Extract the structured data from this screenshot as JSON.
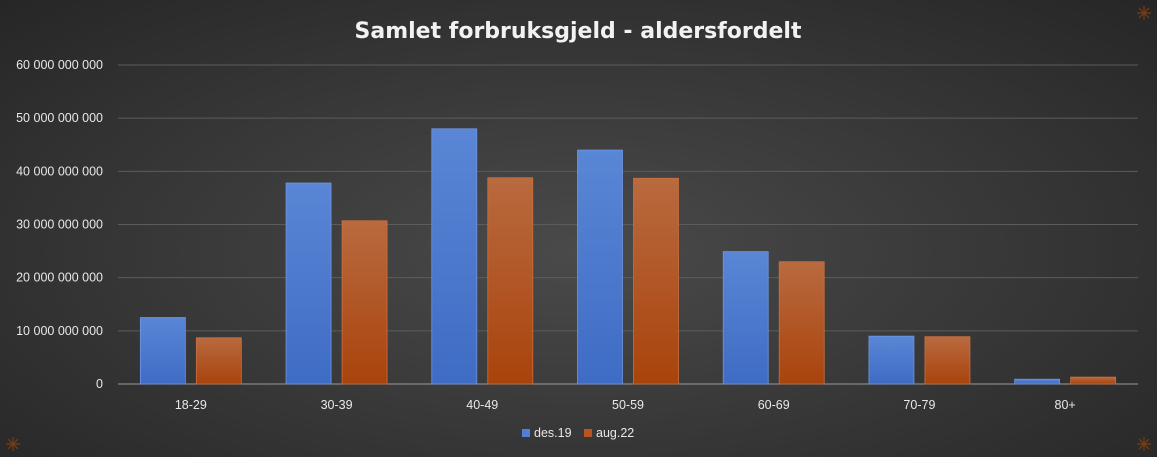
{
  "chart_data": {
    "type": "bar",
    "title": "Samlet forbruksgjeld - aldersfordelt",
    "xlabel": "",
    "ylabel": "",
    "categories": [
      "18-29",
      "30-39",
      "40-49",
      "50-59",
      "60-69",
      "70-79",
      "80+"
    ],
    "series": [
      {
        "name": "des.19",
        "color": "#4f7fd6",
        "values": [
          12500000000,
          37800000000,
          48000000000,
          44000000000,
          24900000000,
          9000000000,
          900000000
        ]
      },
      {
        "name": "aug.22",
        "color": "#b9541f",
        "values": [
          8700000000,
          30700000000,
          38800000000,
          38700000000,
          23000000000,
          8900000000,
          1300000000
        ]
      }
    ],
    "ylim": [
      0,
      60000000000
    ],
    "yticks": [
      0,
      10000000000,
      20000000000,
      30000000000,
      40000000000,
      50000000000,
      60000000000
    ],
    "ytick_labels": [
      "0",
      "10 000 000 000",
      "20 000 000 000",
      "30 000 000 000",
      "40 000 000 000",
      "50 000 000 000",
      "60 000 000 000"
    ],
    "grid": true,
    "legend_position": "bottom"
  }
}
